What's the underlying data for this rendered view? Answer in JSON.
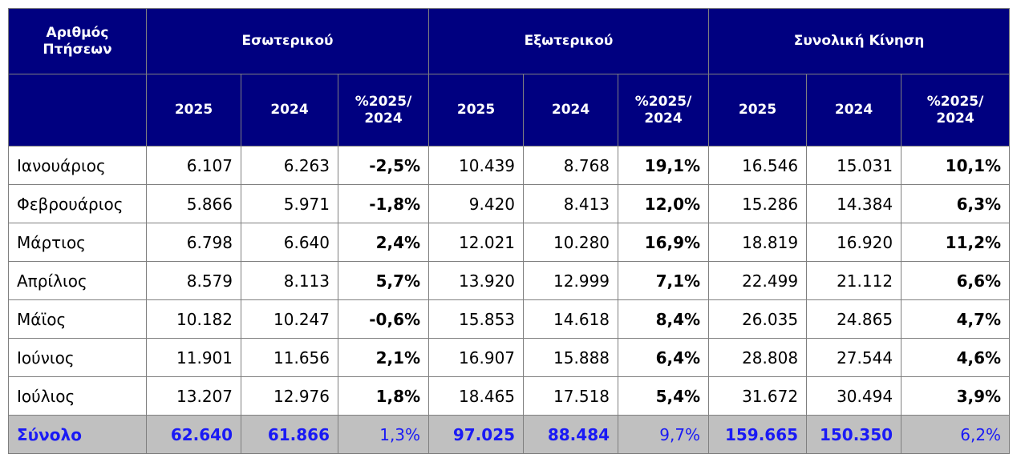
{
  "header": {
    "row_label": [
      "Αριθμός",
      "Πτήσεων"
    ],
    "groups": [
      "Εσωτερικού",
      "Εξωτερικού",
      "Συνολική Κίνηση"
    ],
    "sub": [
      "2025",
      "2024",
      "%2025/",
      "2024"
    ]
  },
  "rows": [
    {
      "month": "Ιανουάριος",
      "values": [
        "6.107",
        "6.263",
        "-2,5%",
        "10.439",
        "8.768",
        "19,1%",
        "16.546",
        "15.031",
        "10,1%"
      ]
    },
    {
      "month": "Φεβρουάριος",
      "values": [
        "5.866",
        "5.971",
        "-1,8%",
        "9.420",
        "8.413",
        "12,0%",
        "15.286",
        "14.384",
        "6,3%"
      ]
    },
    {
      "month": "Μάρτιος",
      "values": [
        "6.798",
        "6.640",
        "2,4%",
        "12.021",
        "10.280",
        "16,9%",
        "18.819",
        "16.920",
        "11,2%"
      ]
    },
    {
      "month": "Απρίλιος",
      "values": [
        "8.579",
        "8.113",
        "5,7%",
        "13.920",
        "12.999",
        "7,1%",
        "22.499",
        "21.112",
        "6,6%"
      ]
    },
    {
      "month": "Μάϊος",
      "values": [
        "10.182",
        "10.247",
        "-0,6%",
        "15.853",
        "14.618",
        "8,4%",
        "26.035",
        "24.865",
        "4,7%"
      ]
    },
    {
      "month": "Ιούνιος",
      "values": [
        "11.901",
        "11.656",
        "2,1%",
        "16.907",
        "15.888",
        "6,4%",
        "28.808",
        "27.544",
        "4,6%"
      ]
    },
    {
      "month": "Ιούλιος",
      "values": [
        "13.207",
        "12.976",
        "1,8%",
        "18.465",
        "17.518",
        "5,4%",
        "31.672",
        "30.494",
        "3,9%"
      ]
    }
  ],
  "total": {
    "label": "Σύνολο",
    "values": [
      "62.640",
      "61.866",
      "1,3%",
      "97.025",
      "88.484",
      "9,7%",
      "159.665",
      "150.350",
      "6,2%"
    ]
  }
}
